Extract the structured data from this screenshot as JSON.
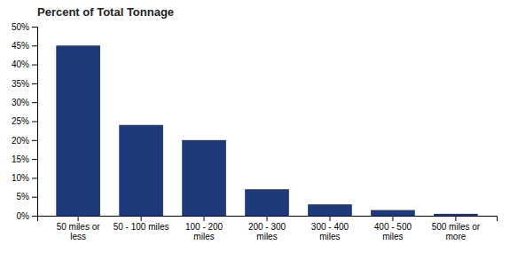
{
  "chart_data": {
    "type": "bar",
    "title": "Percent of Total Tonnage",
    "categories": [
      "50 miles or\nless",
      "50 - 100 miles",
      "100 - 200\nmiles",
      "200 - 300\nmiles",
      "300 - 400\nmiles",
      "400 - 500\nmiles",
      "500 miles or\nmore"
    ],
    "values": [
      45,
      24,
      20,
      7,
      3,
      1.5,
      0.5
    ],
    "color": "#1f3a7a",
    "ylim": [
      0,
      50
    ],
    "yticks": [
      {
        "value": 0,
        "label": "0%"
      },
      {
        "value": 5,
        "label": "5%"
      },
      {
        "value": 10,
        "label": "10%"
      },
      {
        "value": 15,
        "label": "15%"
      },
      {
        "value": 20,
        "label": "20%"
      },
      {
        "value": 25,
        "label": "25%"
      },
      {
        "value": 30,
        "label": "30%"
      },
      {
        "value": 35,
        "label": "35%"
      },
      {
        "value": 40,
        "label": "40%"
      },
      {
        "value": 45,
        "label": "45%"
      },
      {
        "value": 50,
        "label": "50%"
      }
    ],
    "grid": false
  }
}
